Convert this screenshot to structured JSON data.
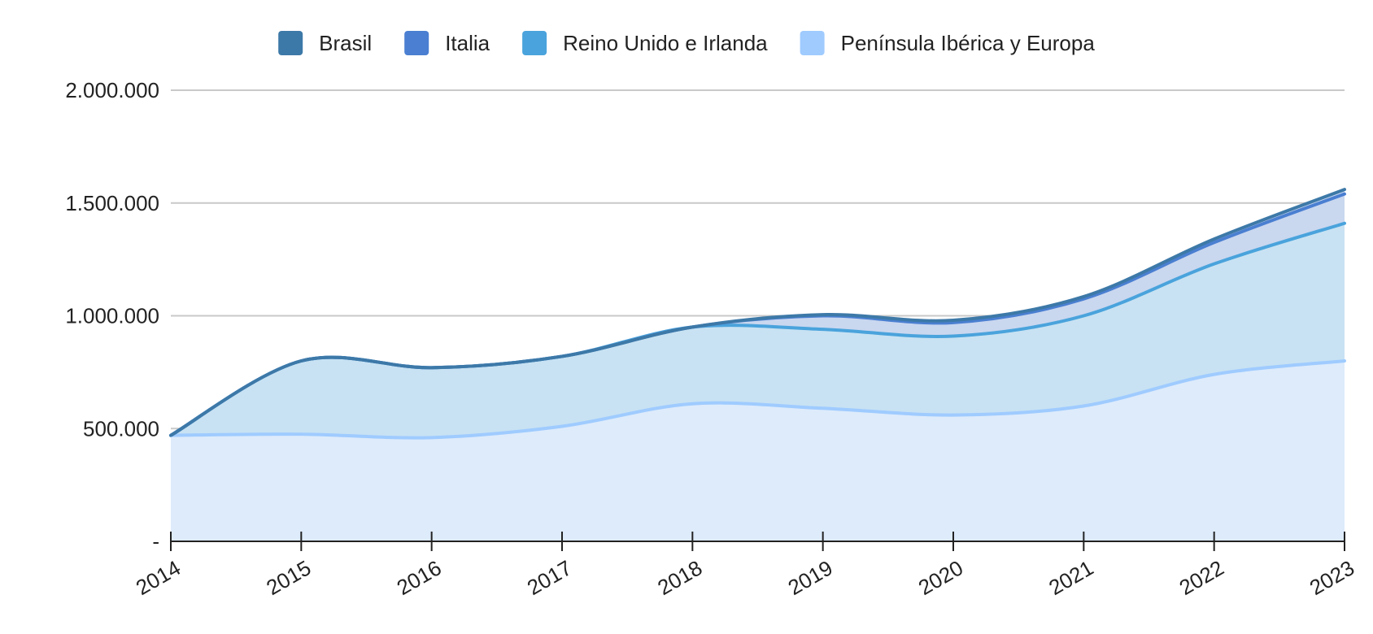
{
  "chart_data": {
    "type": "area",
    "stacked": true,
    "curve": "smooth",
    "x": [
      "2014",
      "2015",
      "2016",
      "2017",
      "2018",
      "2019",
      "2020",
      "2021",
      "2022",
      "2023"
    ],
    "series": [
      {
        "name": "Península Ibérica y Europa",
        "color": "#9fcbff",
        "values": [
          470000,
          475000,
          460000,
          510000,
          610000,
          590000,
          560000,
          600000,
          740000,
          800000
        ]
      },
      {
        "name": "Reino Unido e Irlanda",
        "color": "#4aa3dc",
        "values": [
          0,
          325000,
          310000,
          310000,
          340000,
          350000,
          350000,
          400000,
          490000,
          610000
        ]
      },
      {
        "name": "Italia",
        "color": "#4a7fd1",
        "values": [
          0,
          0,
          0,
          0,
          0,
          60000,
          60000,
          75000,
          95000,
          130000
        ]
      },
      {
        "name": "Brasil",
        "color": "#3d79a8",
        "values": [
          0,
          0,
          0,
          0,
          0,
          5000,
          10000,
          10000,
          15000,
          20000
        ]
      }
    ],
    "legend_order": [
      "Brasil",
      "Italia",
      "Reino Unido e Irlanda",
      "Península Ibérica y Europa"
    ],
    "legend_position": "top-center",
    "yticks": [
      "-",
      "500.000",
      "1.000.000",
      "1.500.000",
      "2.000.000"
    ],
    "ytick_values": [
      0,
      500000,
      1000000,
      1500000,
      2000000
    ],
    "ylim": [
      0,
      2000000
    ],
    "grid": true,
    "title": "",
    "xlabel": "",
    "ylabel": ""
  }
}
